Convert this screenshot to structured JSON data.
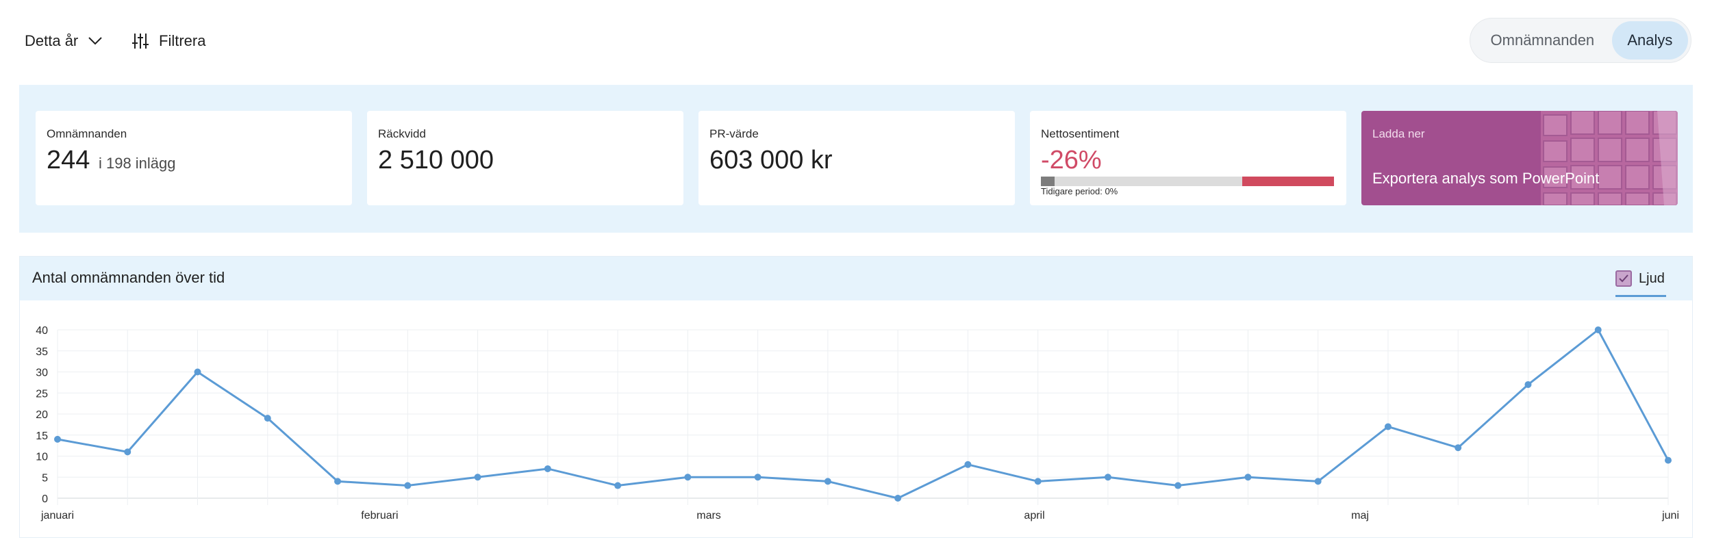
{
  "topbar": {
    "period_label": "Detta år",
    "filter_label": "Filtrera",
    "view_toggle": [
      "Omnämnanden",
      "Analys"
    ],
    "active_view": "Analys"
  },
  "kpis": {
    "mentions": {
      "label": "Omnämnanden",
      "value": "244",
      "sub": "i 198 inlägg"
    },
    "reach": {
      "label": "Räckvidd",
      "value": "2 510 000"
    },
    "pr_value": {
      "label": "PR-värde",
      "value": "603 000 kr"
    },
    "sentiment": {
      "label": "Nettosentiment",
      "value": "-26%",
      "previous": "Tidigare period: 0%"
    },
    "download": {
      "label": "Ladda ner",
      "action": "Exportera analys som PowerPoint"
    }
  },
  "panel": {
    "title": "Antal omnämnanden över tid",
    "legend_label": "Ljud",
    "legend_checked": true
  },
  "colors": {
    "accent": "#5b9bd5",
    "negative": "#d04a5e",
    "download_bg": "#a24f8f",
    "band_bg": "#e6f3fc"
  },
  "chart_data": {
    "type": "line",
    "title": "Antal omnämnanden över tid",
    "series": [
      {
        "name": "Ljud",
        "values": [
          14,
          11,
          30,
          19,
          4,
          3,
          5,
          7,
          3,
          5,
          5,
          4,
          0,
          8,
          4,
          5,
          3,
          5,
          4,
          17,
          12,
          27,
          40,
          9
        ]
      }
    ],
    "x_tick_labels": [
      "januari",
      "februari",
      "mars",
      "april",
      "maj",
      "juni"
    ],
    "x_tick_indices": [
      0,
      4.6,
      9.3,
      13.95,
      18.6,
      23
    ],
    "y_ticks": [
      0,
      5,
      10,
      15,
      20,
      25,
      30,
      35,
      40
    ],
    "ylim": [
      0,
      40
    ],
    "grid": true,
    "legend_position": "top-right"
  }
}
